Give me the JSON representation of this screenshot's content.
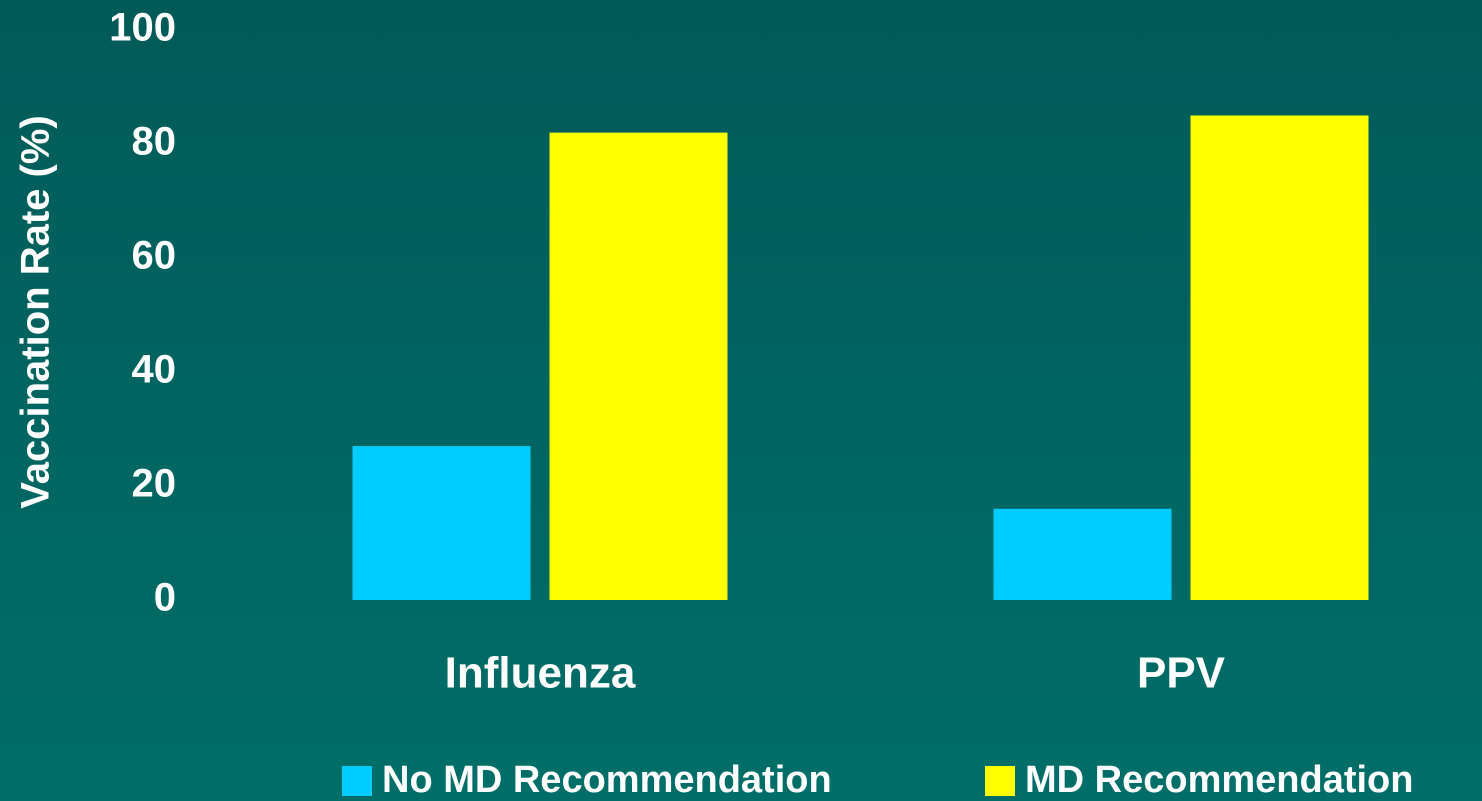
{
  "chart_data": {
    "type": "bar",
    "y_label": "Vaccination Rate (%)",
    "categories": [
      "Influenza",
      "PPV"
    ],
    "series": [
      {
        "name": "No MD Recommendation",
        "color": "#00ccff",
        "values": [
          27,
          16
        ]
      },
      {
        "name": "MD Recommendation",
        "color": "#ffff00",
        "values": [
          82,
          85
        ]
      }
    ],
    "ylim": [
      0,
      100
    ],
    "yticks": [
      0,
      20,
      40,
      60,
      80,
      100
    ],
    "grid": false,
    "legend": "bottom"
  }
}
